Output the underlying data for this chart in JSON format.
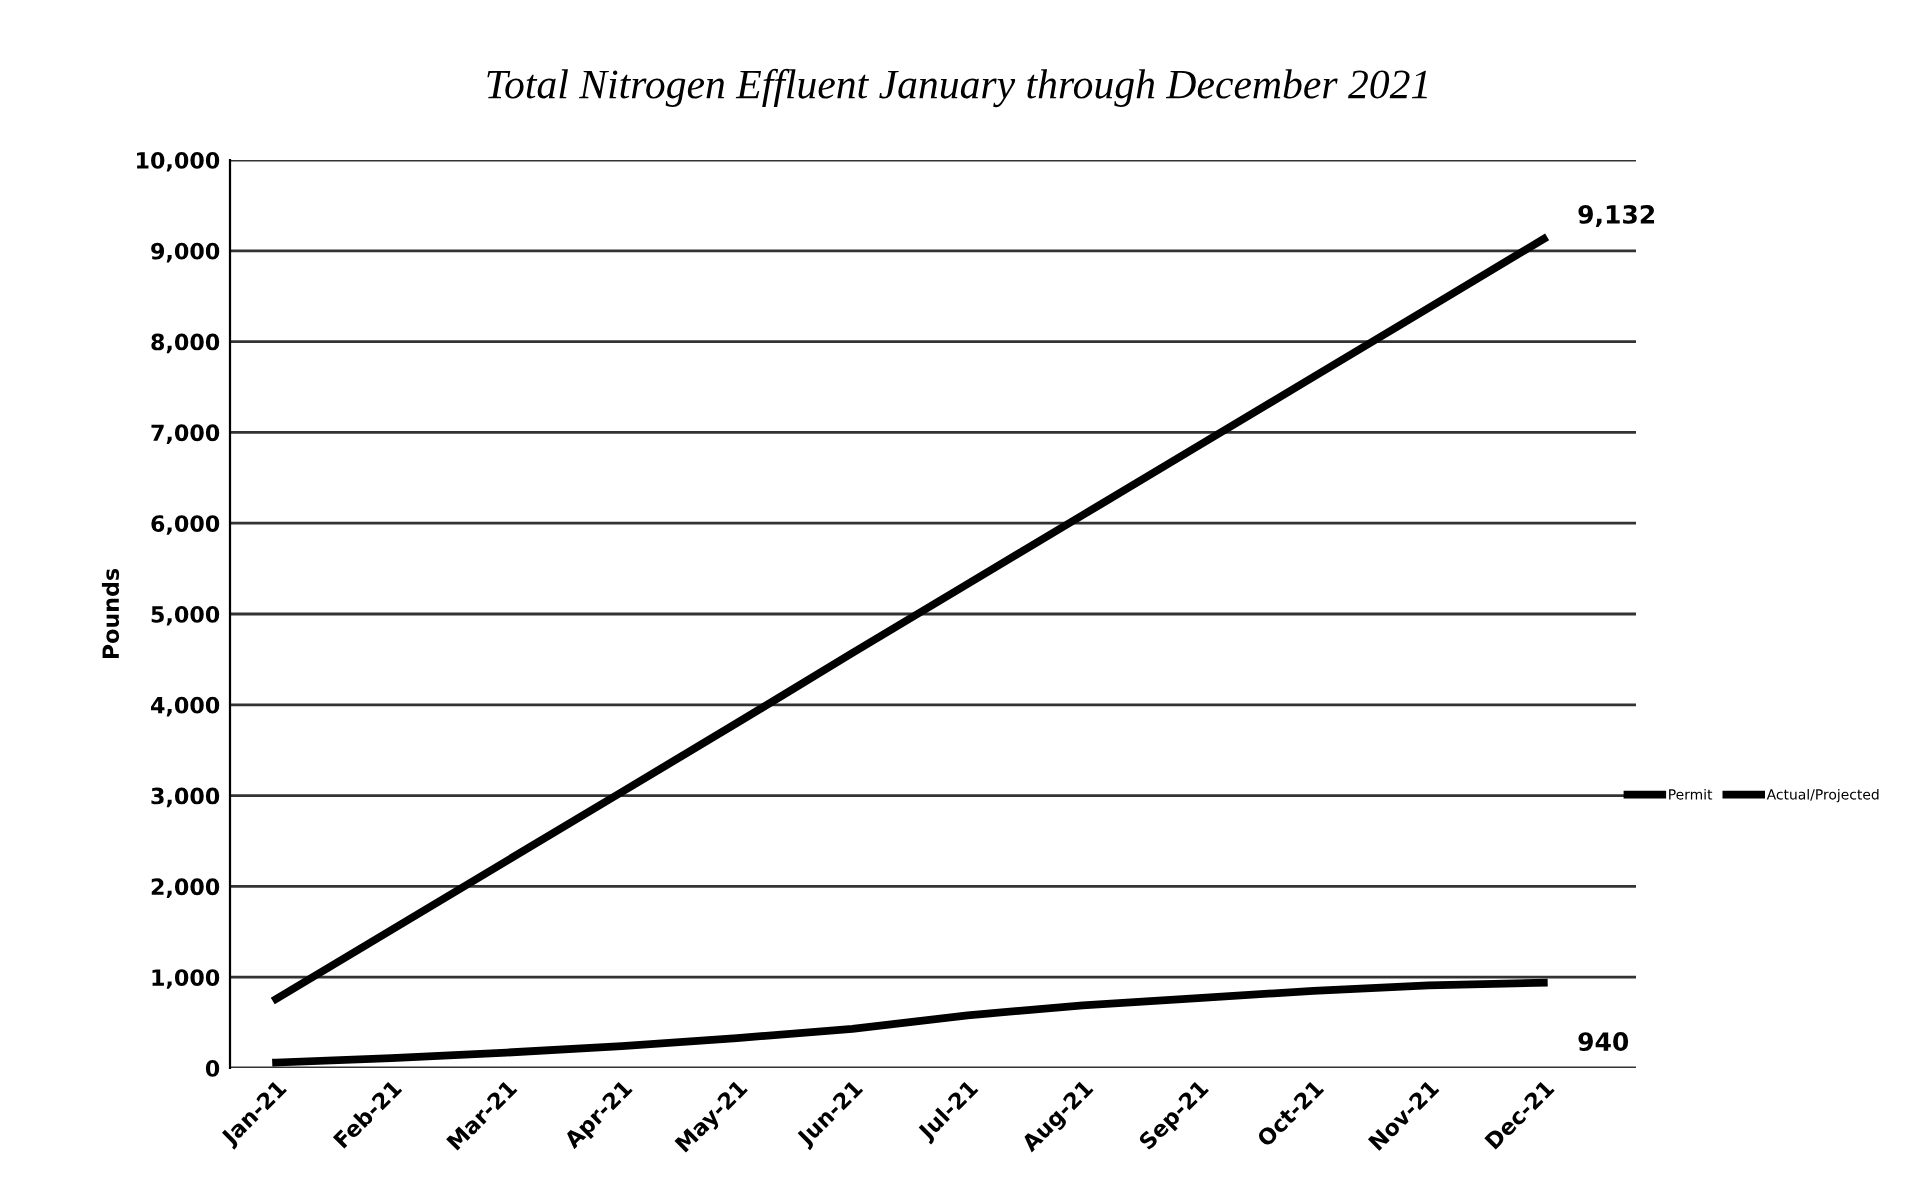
{
  "chart_data": {
    "type": "line",
    "title": "Total Nitrogen Effluent January through December 2021",
    "ylabel": "Pounds",
    "categories": [
      "Jan-21",
      "Feb-21",
      "Mar-21",
      "Apr-21",
      "May-21",
      "Jun-21",
      "Jul-21",
      "Aug-21",
      "Sep-21",
      "Oct-21",
      "Nov-21",
      "Dec-21"
    ],
    "series": [
      {
        "name": "Permit",
        "color": "#000000",
        "values": [
          760,
          1520,
          2280,
          3040,
          3800,
          4570,
          5330,
          6090,
          6850,
          7610,
          8370,
          9132
        ],
        "value_labels": [
          null,
          null,
          null,
          null,
          null,
          null,
          null,
          null,
          null,
          null,
          null,
          "9,132"
        ]
      },
      {
        "name": "Actual/Projected",
        "color": "#000000",
        "values": [
          60,
          110,
          170,
          240,
          330,
          430,
          580,
          690,
          770,
          850,
          910,
          940
        ],
        "value_labels": [
          null,
          null,
          null,
          null,
          null,
          null,
          null,
          null,
          null,
          null,
          null,
          "940"
        ]
      }
    ],
    "ylim": [
      0,
      10000
    ],
    "yticks": [
      {
        "value": 0,
        "label": "0"
      },
      {
        "value": 1000,
        "label": "1,000"
      },
      {
        "value": 2000,
        "label": "2,000"
      },
      {
        "value": 3000,
        "label": "3,000"
      },
      {
        "value": 4000,
        "label": "4,000"
      },
      {
        "value": 5000,
        "label": "5,000"
      },
      {
        "value": 6000,
        "label": "6,000"
      },
      {
        "value": 7000,
        "label": "7,000"
      },
      {
        "value": 8000,
        "label": "8,000"
      },
      {
        "value": 9000,
        "label": "9,000"
      },
      {
        "value": 10000,
        "label": "10,000"
      }
    ],
    "grid": "y",
    "legend": "right",
    "marker": "none",
    "line_style": "solid"
  }
}
